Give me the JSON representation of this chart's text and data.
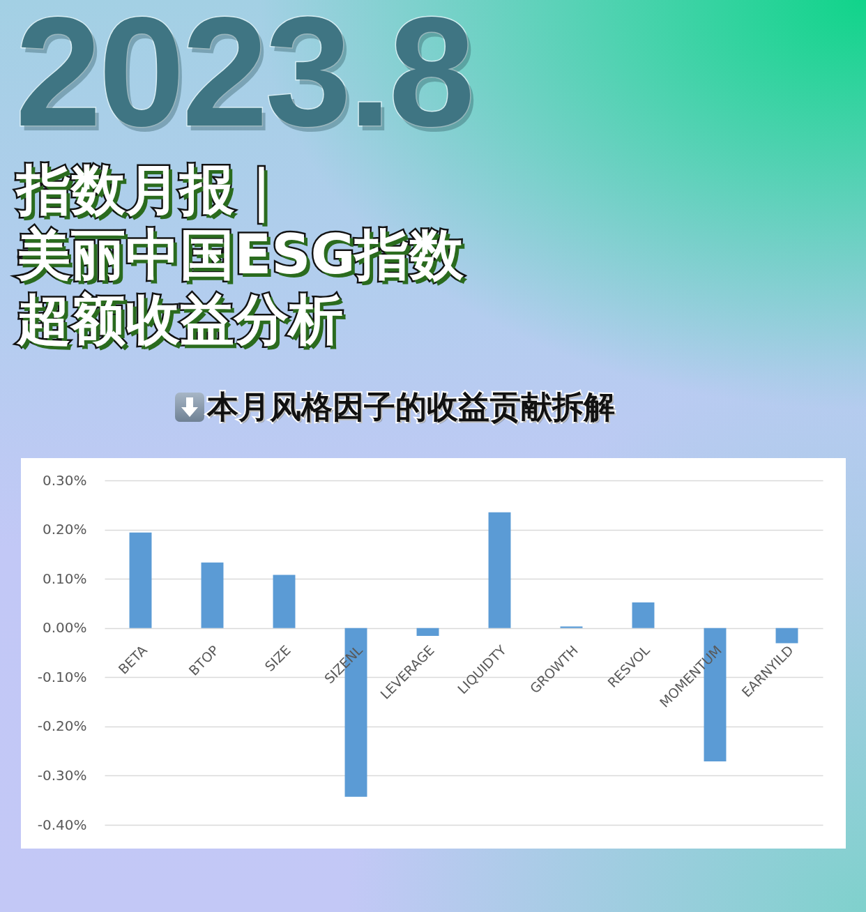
{
  "chart_data": {
    "type": "bar",
    "title": "指数月报｜美丽中国ESG指数超额收益分析",
    "subtitle": "本月风格因子的收益贡献拆解",
    "annotations": [
      "2023.8"
    ],
    "categories": [
      "BETA",
      "BTOP",
      "SIZE",
      "SIZENL",
      "LEVERAGE",
      "LIQUIDTY",
      "GROWTH",
      "RESVOL",
      "MOMENTUM",
      "EARNYILD"
    ],
    "values": [
      0.194,
      0.133,
      0.108,
      -0.343,
      -0.016,
      0.235,
      0.003,
      0.052,
      -0.271,
      -0.031
    ],
    "color": "#5b9bd5",
    "ylim": [
      -0.4,
      0.3
    ],
    "yticks": [
      {
        "value": 0.3,
        "label": "0.30%"
      },
      {
        "value": 0.2,
        "label": "0.20%"
      },
      {
        "value": 0.1,
        "label": "0.10%"
      },
      {
        "value": 0,
        "label": "0.00%"
      },
      {
        "value": -0.1,
        "label": "-0.10%"
      },
      {
        "value": -0.2,
        "label": "-0.20%"
      },
      {
        "value": -0.3,
        "label": "-0.30%"
      },
      {
        "value": -0.4,
        "label": "-0.40%"
      }
    ],
    "grid": "y"
  }
}
